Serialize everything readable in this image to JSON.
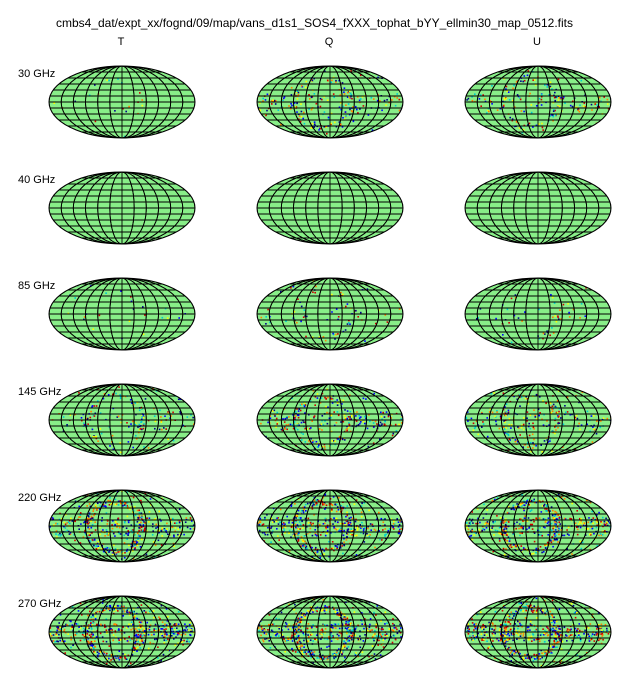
{
  "figure": {
    "title": "cmbs4_dat/expt_xx/fognd/09/map/vans_d1s1_SOS4_fXXX_tophat_bYY_ellmin30_map_0512.fits"
  },
  "columns": [
    "T",
    "Q",
    "U"
  ],
  "rows": [
    {
      "label": "30 GHz",
      "speckle": [
        0.03,
        0.35,
        0.3
      ]
    },
    {
      "label": "40 GHz",
      "speckle": [
        0.0,
        0.0,
        0.0
      ]
    },
    {
      "label": "85 GHz",
      "speckle": [
        0.04,
        0.12,
        0.08
      ]
    },
    {
      "label": "145 GHz",
      "speckle": [
        0.25,
        0.45,
        0.4
      ]
    },
    {
      "label": "220 GHz",
      "speckle": [
        0.75,
        0.85,
        0.85
      ]
    },
    {
      "label": "270 GHz",
      "speckle": [
        0.95,
        1.0,
        1.0
      ]
    }
  ],
  "colors": {
    "base": "#88ee88",
    "grid": "#000000",
    "speckle": [
      "#000088",
      "#0000ff",
      "#00cccc",
      "#ffff00",
      "#ff7f00",
      "#cc0000"
    ]
  }
}
